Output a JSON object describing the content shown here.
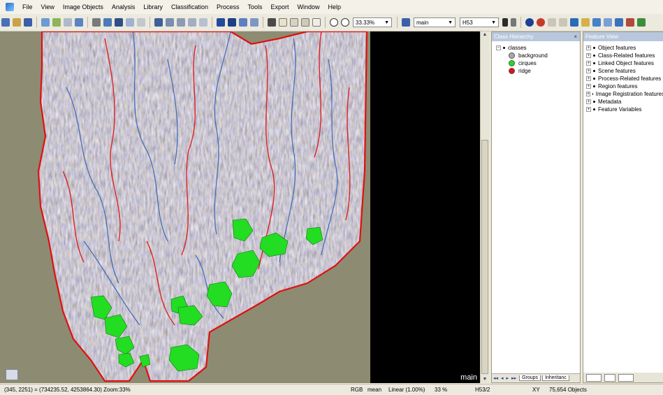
{
  "menu": [
    "File",
    "View",
    "Image Objects",
    "Analysis",
    "Library",
    "Classification",
    "Process",
    "Tools",
    "Export",
    "Window",
    "Help"
  ],
  "toolbar": {
    "zoom": "33.33%",
    "map": "main",
    "layer": "H53"
  },
  "viewer": {
    "name": "main"
  },
  "class_hierarchy": {
    "title": "Class Hierarchy",
    "root": "classes",
    "classes": [
      {
        "label": "background",
        "color": "#a9a9a9"
      },
      {
        "label": "cirques",
        "color": "#22dd22"
      },
      {
        "label": "ridge",
        "color": "#e01010"
      }
    ],
    "tabs": [
      "Groups",
      "Inheritanc"
    ]
  },
  "feature_view": {
    "title": "Feature View",
    "items": [
      "Object features",
      "Class-Related features",
      "Linked Object features",
      "Scene features",
      "Process-Related features",
      "Region features",
      "Image Registration features",
      "Metadata",
      "Feature Variables"
    ]
  },
  "status": {
    "coords": "(345, 2251) = (734235.52, 4253864.30)  Zoom:33%",
    "mode": "RGB",
    "mean": "mean",
    "stretch": "Linear (1.00%)",
    "pct": "33 %",
    "layer": "H53/2",
    "xy": "XY",
    "objects": "75,654 Objects"
  },
  "colors": {
    "cirque": "#22dd22",
    "ridge": "#e01010",
    "terrain": "#8d8c72"
  }
}
